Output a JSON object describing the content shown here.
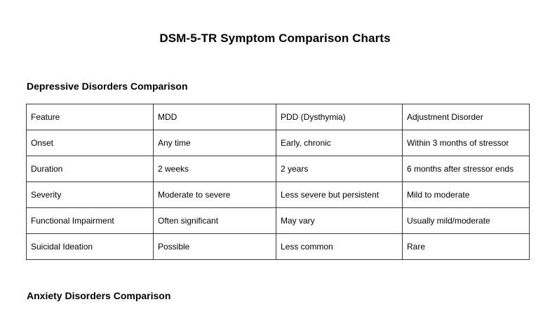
{
  "page": {
    "title": "DSM-5-TR Symptom Comparison Charts"
  },
  "sections": {
    "depressive": {
      "heading": "Depressive Disorders Comparison"
    },
    "anxiety": {
      "heading": "Anxiety Disorders Comparison"
    }
  },
  "table1": {
    "headers": [
      "Feature",
      "MDD",
      "PDD (Dysthymia)",
      "Adjustment Disorder"
    ],
    "rows": [
      [
        "Onset",
        "Any time",
        "Early, chronic",
        "Within 3 months of stressor"
      ],
      [
        "Duration",
        "2 weeks",
        "2 years",
        "6 months after stressor ends"
      ],
      [
        "Severity",
        "Moderate to severe",
        "Less severe but persistent",
        "Mild to moderate"
      ],
      [
        "Functional Impairment",
        "Often significant",
        "May vary",
        "Usually mild/moderate"
      ],
      [
        "Suicidal Ideation",
        "Possible",
        "Less common",
        "Rare"
      ]
    ]
  },
  "colors": {
    "background": "#ffffff",
    "text": "#000000",
    "table_border": "#3a3a3a"
  }
}
